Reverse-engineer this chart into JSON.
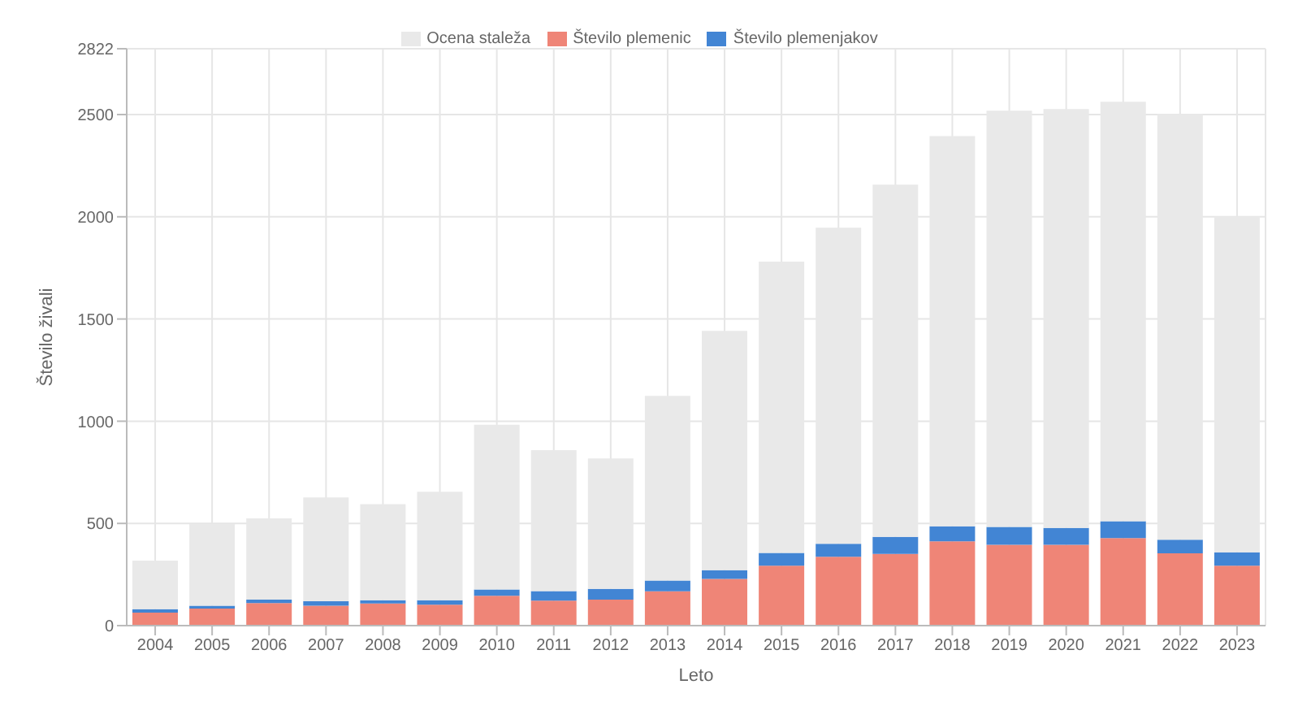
{
  "chart_data": {
    "type": "bar",
    "xlabel": "Leto",
    "ylabel": "Število živali",
    "categories": [
      "2004",
      "2005",
      "2006",
      "2007",
      "2008",
      "2009",
      "2010",
      "2011",
      "2012",
      "2013",
      "2014",
      "2015",
      "2016",
      "2017",
      "2018",
      "2019",
      "2020",
      "2021",
      "2022",
      "2023"
    ],
    "series": [
      {
        "name": "Število plemenic",
        "color": "#ef8577",
        "values": [
          64,
          83,
          110,
          97,
          108,
          102,
          146,
          122,
          127,
          168,
          229,
          293,
          337,
          351,
          412,
          395,
          395,
          428,
          354,
          293
        ]
      },
      {
        "name": "Število plemenjakov",
        "color": "#4285d4",
        "values": [
          16,
          14,
          17,
          22,
          16,
          22,
          31,
          47,
          53,
          53,
          42,
          63,
          63,
          83,
          74,
          88,
          83,
          83,
          66,
          66
        ]
      },
      {
        "name": "Ocena staleža",
        "color": "#e9e9e9",
        "values": [
          238,
          400,
          398,
          508,
          470,
          531,
          806,
          690,
          638,
          903,
          1171,
          1425,
          1547,
          1723,
          1909,
          2036,
          2049,
          2052,
          2082,
          1643
        ]
      }
    ],
    "stacked": true,
    "ylim": [
      0,
      2822
    ],
    "yticks": [
      0,
      500,
      1000,
      1500,
      2000,
      2500,
      2822
    ],
    "grid": true,
    "legend": "top"
  }
}
